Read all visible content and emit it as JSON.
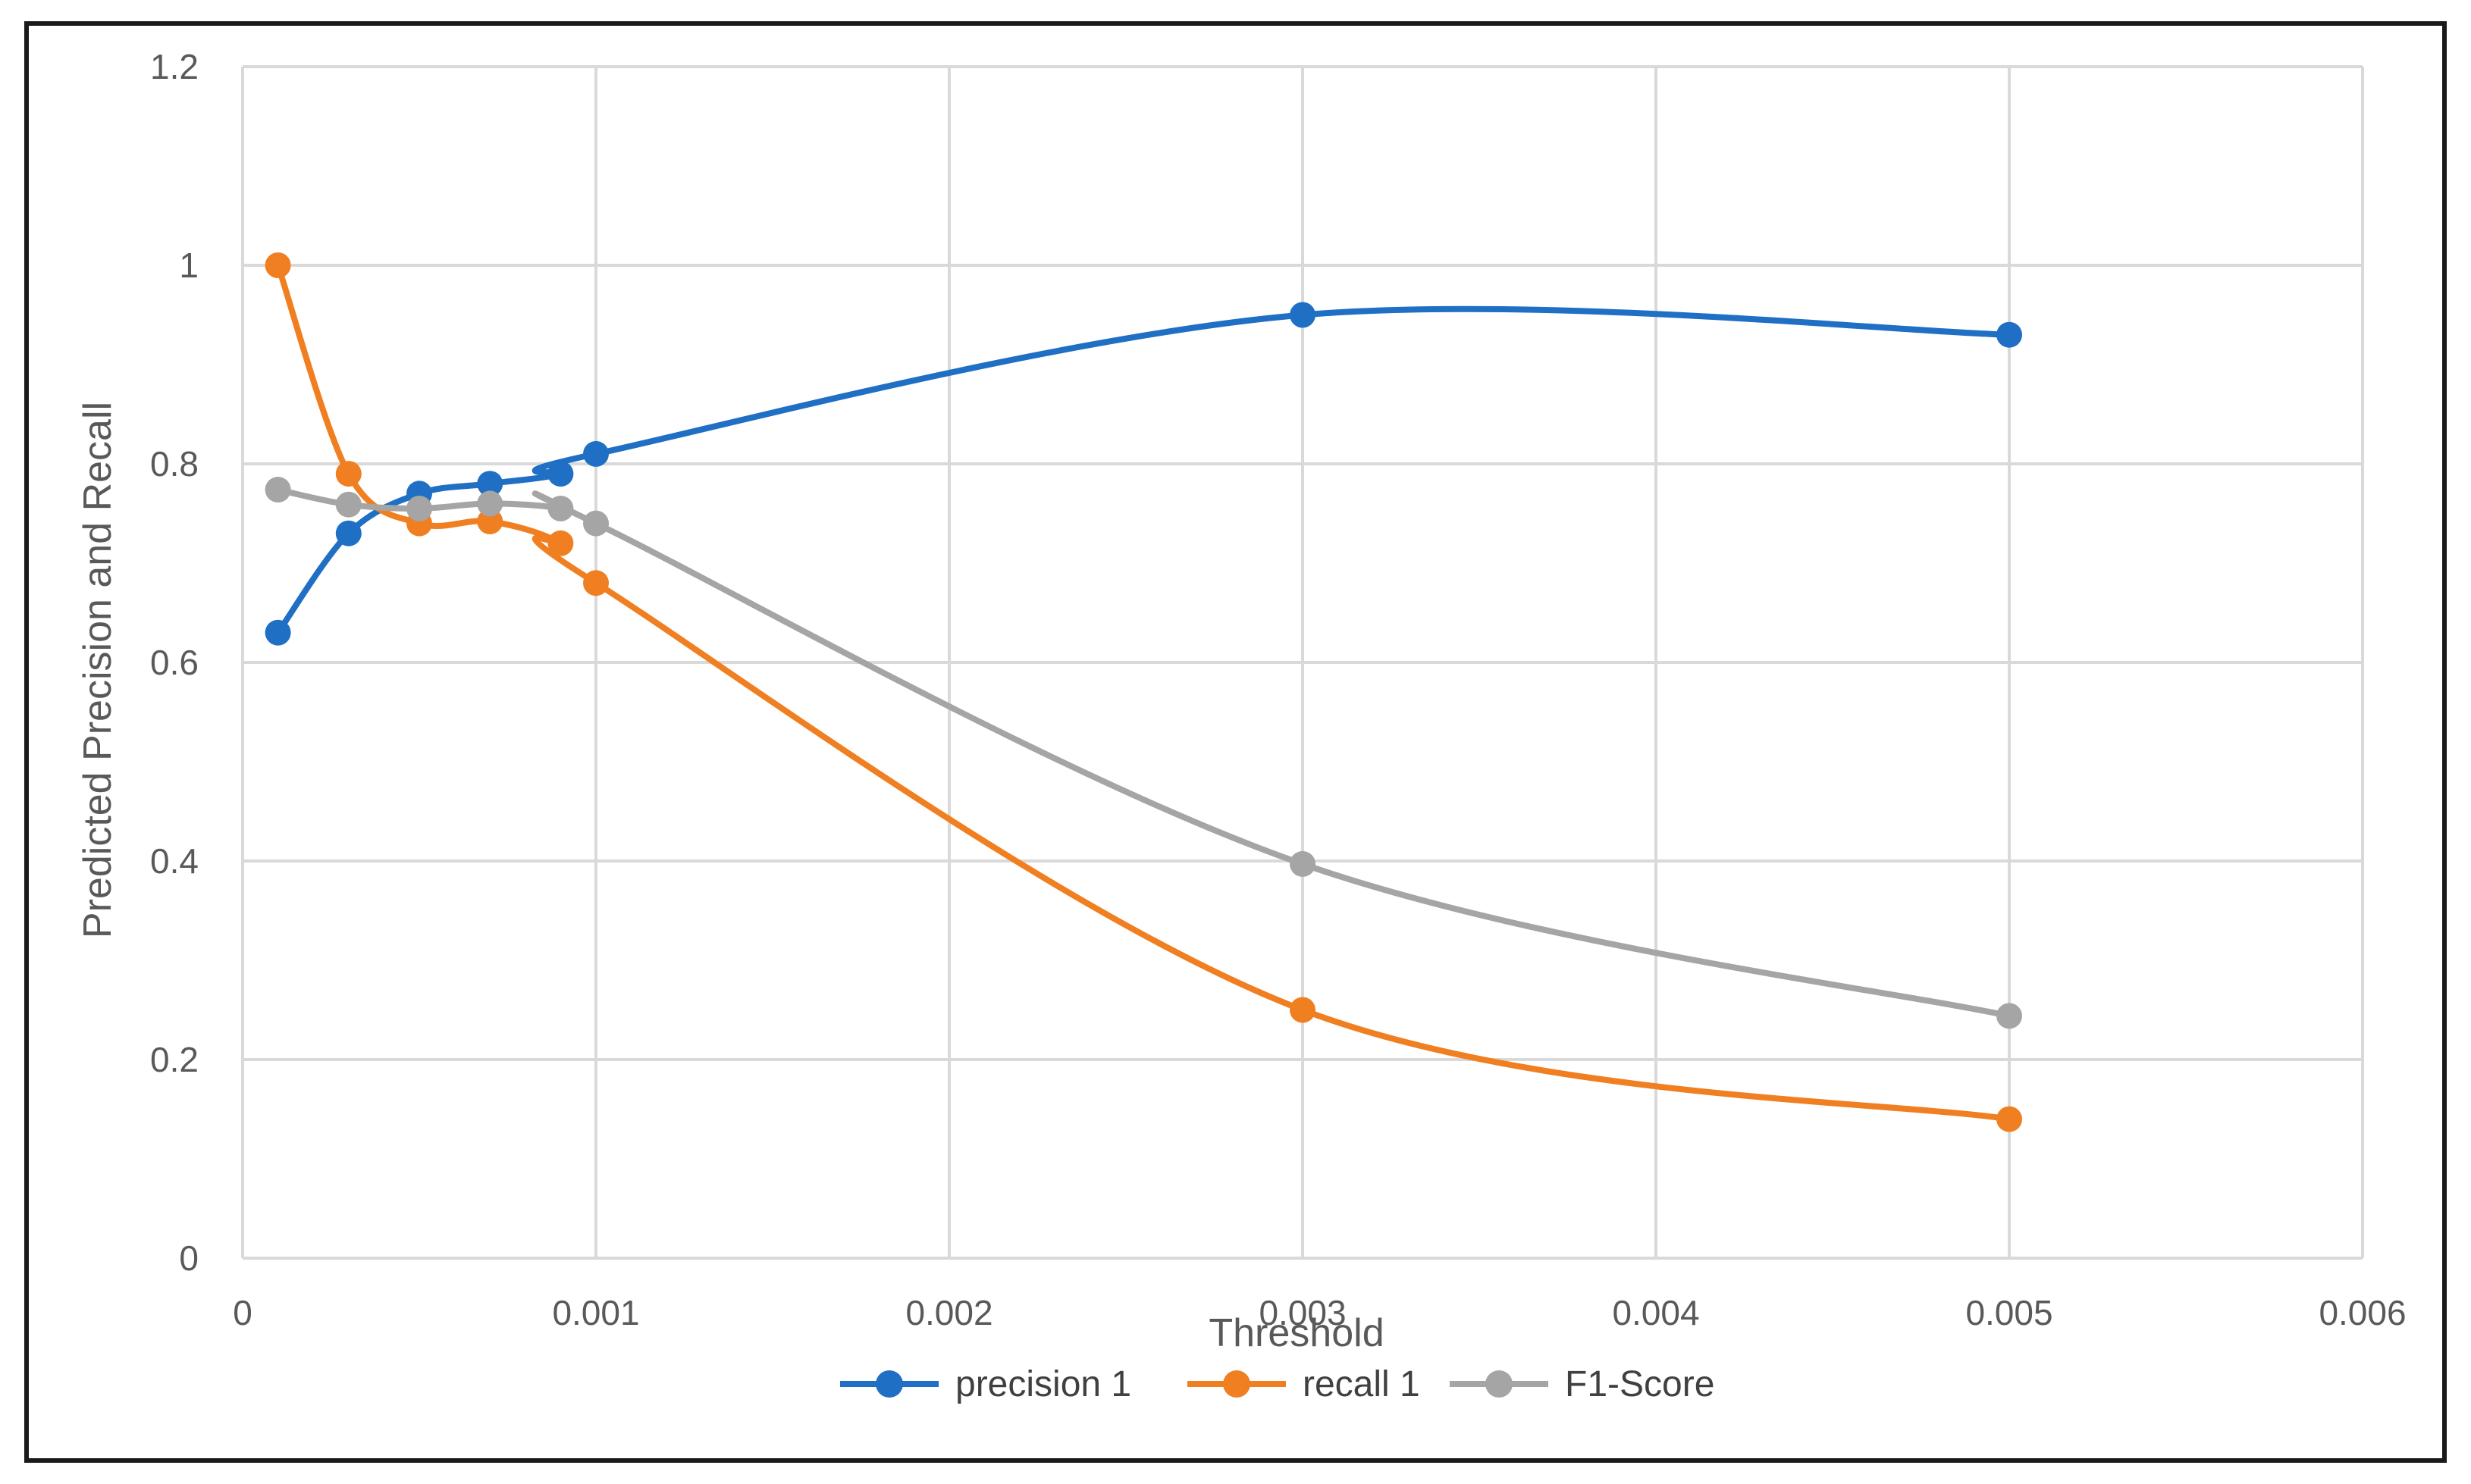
{
  "chart_data": {
    "type": "line",
    "title": "",
    "xlabel": "Threshold",
    "ylabel": "Predicted Precision and Recall",
    "xlim": [
      0,
      0.006
    ],
    "ylim": [
      0,
      1.2
    ],
    "x_ticks": [
      0,
      0.001,
      0.002,
      0.003,
      0.004,
      0.005,
      0.006
    ],
    "x_tick_labels": [
      "0",
      "0.001",
      "0.002",
      "0.003",
      "0.004",
      "0.005",
      "0.006"
    ],
    "y_ticks": [
      0,
      0.2,
      0.4,
      0.6,
      0.8,
      1,
      1.2
    ],
    "y_tick_labels": [
      "0",
      "0.2",
      "0.4",
      "0.6",
      "0.8",
      "1",
      "1.2"
    ],
    "grid": true,
    "smooth": true,
    "legend_position": "bottom",
    "series": [
      {
        "name": "precision 1",
        "color": "#1F6FC5",
        "x": [
          0.0001,
          0.0003,
          0.0005,
          0.0007,
          0.0009,
          0.001,
          0.003,
          0.005
        ],
        "y": [
          0.63,
          0.73,
          0.77,
          0.78,
          0.79,
          0.81,
          0.95,
          0.93
        ]
      },
      {
        "name": "recall 1",
        "color": "#F07F22",
        "x": [
          0.0001,
          0.0003,
          0.0005,
          0.0007,
          0.0009,
          0.001,
          0.003,
          0.005
        ],
        "y": [
          1.0,
          0.79,
          0.74,
          0.742,
          0.72,
          0.68,
          0.25,
          0.14
        ]
      },
      {
        "name": "F1-Score",
        "color": "#A5A5A5",
        "x": [
          0.0001,
          0.0003,
          0.0005,
          0.0007,
          0.0009,
          0.001,
          0.003,
          0.005
        ],
        "y": [
          0.774,
          0.759,
          0.755,
          0.76,
          0.755,
          0.74,
          0.397,
          0.244
        ]
      }
    ]
  }
}
